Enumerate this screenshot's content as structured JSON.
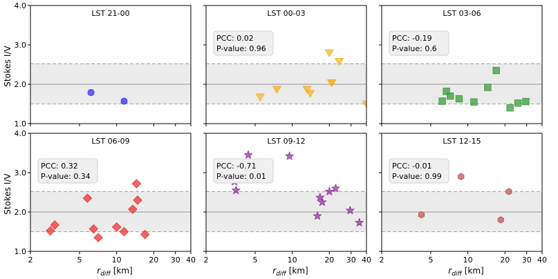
{
  "chart_data": {
    "type": "scatter",
    "ylabel": "Stokes I/V",
    "xlabel_main": "r",
    "xlabel_sub": "diff",
    "xlabel_unit": " [km]",
    "xscale": "log",
    "xlim": [
      2,
      40
    ],
    "ylim": [
      1.0,
      4.0
    ],
    "xticks": [
      {
        "value": 2,
        "label": "2"
      },
      {
        "value": 5,
        "label": "5"
      },
      {
        "value": 10,
        "label": "10"
      },
      {
        "value": 20,
        "label": "20"
      },
      {
        "value": 30,
        "label": "30"
      },
      {
        "value": 40,
        "label": "40"
      }
    ],
    "yticks": [
      {
        "value": 1.0,
        "label": "1.0"
      },
      {
        "value": 2.0,
        "label": "2.0"
      },
      {
        "value": 3.0,
        "label": "3.0"
      },
      {
        "value": 4.0,
        "label": "4.0"
      }
    ],
    "reference_band": {
      "low": 1.5,
      "mid": 2.0,
      "high": 2.52
    },
    "panels": [
      {
        "title": "LST 21-00",
        "marker": "circle",
        "color": "#3333ee",
        "stats": null,
        "points": [
          [
            6.2,
            1.79
          ],
          [
            11.5,
            1.57
          ]
        ]
      },
      {
        "title": "LST 00-03",
        "marker": "triangle-down",
        "color": "#f5b32e",
        "stats": {
          "pcc": "PCC: 0.02",
          "pvalue": "P-value: 0.96"
        },
        "points": [
          [
            5.5,
            1.68
          ],
          [
            7.5,
            1.87
          ],
          [
            13.2,
            1.87
          ],
          [
            14.0,
            1.77
          ],
          [
            20.0,
            2.8
          ],
          [
            20.8,
            2.04
          ],
          [
            21.0,
            2.04
          ],
          [
            24.0,
            2.58
          ],
          [
            40.0,
            1.5
          ]
        ]
      },
      {
        "title": "LST 03-06",
        "marker": "square",
        "color": "#3d9c3d",
        "stats": {
          "pcc": "PCC: -0.19",
          "pvalue": "P-value: 0.6"
        },
        "points": [
          [
            6.2,
            1.57
          ],
          [
            6.7,
            1.82
          ],
          [
            7.2,
            1.7
          ],
          [
            8.5,
            1.63
          ],
          [
            11.2,
            1.55
          ],
          [
            14.5,
            1.92
          ],
          [
            17.0,
            2.35
          ],
          [
            22.0,
            1.4
          ],
          [
            25.5,
            1.52
          ],
          [
            29.5,
            1.56
          ]
        ]
      },
      {
        "title": "LST 06-09",
        "marker": "diamond",
        "color": "#ee3333",
        "stats": {
          "pcc": "PCC: 0.32",
          "pvalue": "P-value: 0.34"
        },
        "points": [
          [
            2.9,
            1.52
          ],
          [
            3.15,
            1.67
          ],
          [
            5.8,
            2.35
          ],
          [
            6.5,
            1.57
          ],
          [
            7.1,
            1.35
          ],
          [
            10.0,
            1.62
          ],
          [
            11.5,
            1.5
          ],
          [
            13.5,
            2.07
          ],
          [
            14.5,
            2.72
          ],
          [
            14.8,
            2.3
          ],
          [
            17.0,
            1.43
          ]
        ]
      },
      {
        "title": "LST 09-12",
        "marker": "star",
        "color": "#9437a0",
        "stats": {
          "pcc": "PCC: -0.71",
          "pvalue": "P-value: 0.01"
        },
        "points": [
          [
            3.4,
            2.77
          ],
          [
            3.5,
            2.55
          ],
          [
            4.4,
            3.45
          ],
          [
            9.5,
            3.42
          ],
          [
            16.0,
            1.9
          ],
          [
            16.8,
            2.37
          ],
          [
            17.5,
            2.25
          ],
          [
            20.0,
            2.52
          ],
          [
            22.5,
            2.6
          ],
          [
            29.5,
            2.04
          ],
          [
            35.0,
            1.73
          ]
        ]
      },
      {
        "title": "LST 12-15",
        "marker": "hexagon",
        "color": "#c25555",
        "stats": {
          "pcc": "PCC: -0.01",
          "pvalue": "P-value: 0.99"
        },
        "points": [
          [
            4.2,
            1.93
          ],
          [
            8.8,
            2.9
          ],
          [
            18.5,
            1.8
          ],
          [
            21.5,
            2.52
          ]
        ]
      }
    ]
  }
}
